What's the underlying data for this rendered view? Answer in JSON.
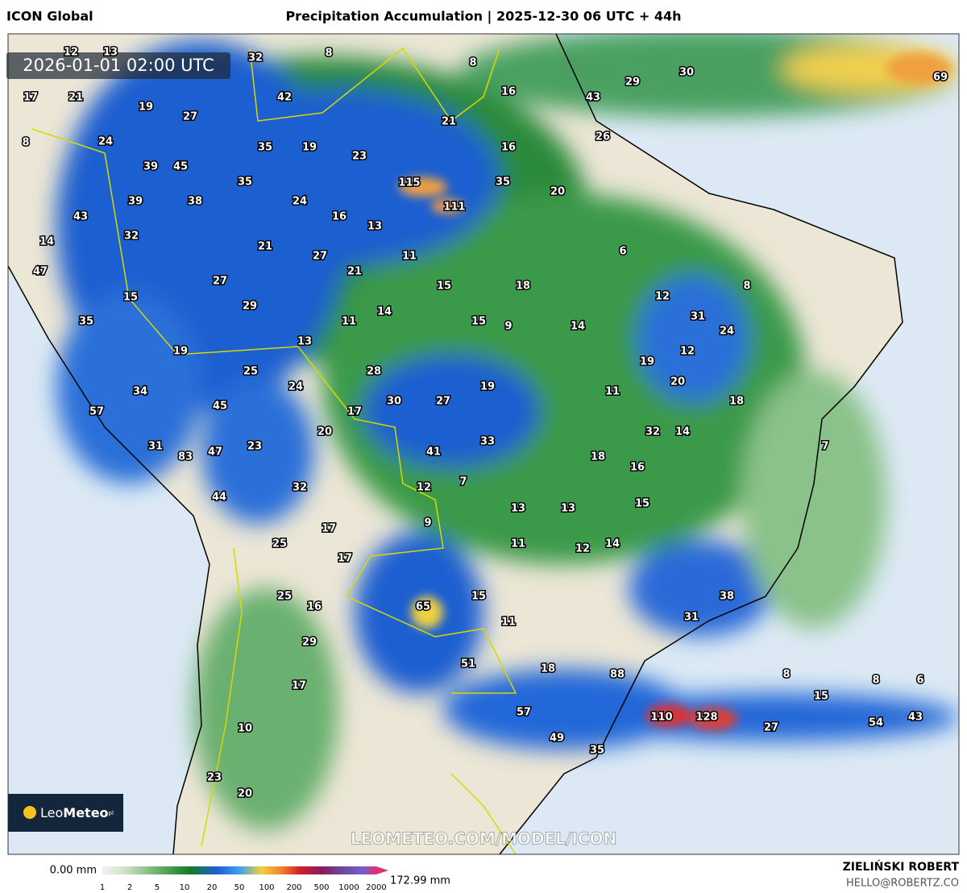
{
  "header": {
    "model": "ICON Global",
    "title": "Precipitation Accumulation | 2025-12-30 06 UTC + 44h"
  },
  "timestamp": "2026-01-01 02:00 UTC",
  "watermark": "LEOMETEO.COM/MODEL/ICON",
  "logo": {
    "brand_light": "Leo",
    "brand_bold": "Meteo",
    "suffix": "pl"
  },
  "map_labels": [
    12,
    13,
    32,
    8,
    8,
    29,
    30,
    69,
    17,
    21,
    42,
    16,
    43,
    19,
    27,
    21,
    8,
    24,
    35,
    19,
    23,
    16,
    26,
    39,
    45,
    115,
    35,
    20,
    35,
    39,
    38,
    24,
    111,
    43,
    16,
    13,
    32,
    14,
    21,
    27,
    11,
    6,
    47,
    21,
    27,
    15,
    18,
    8,
    15,
    12,
    29,
    14,
    31,
    35,
    11,
    15,
    9,
    14,
    24,
    13,
    19,
    12,
    19,
    25,
    28,
    20,
    24,
    19,
    11,
    34,
    30,
    27,
    18,
    45,
    57,
    17,
    20,
    32,
    14,
    33,
    7,
    31,
    23,
    41,
    83,
    47,
    18,
    16,
    7,
    12,
    32,
    44,
    13,
    13,
    15,
    9,
    17,
    25,
    11,
    14,
    12,
    17,
    15,
    25,
    16,
    38,
    65,
    11,
    31,
    29,
    51,
    18,
    88,
    8,
    8,
    6,
    17,
    15,
    57,
    110,
    128,
    43,
    54,
    27,
    10,
    49,
    35,
    23,
    20
  ],
  "legend": {
    "min_label": "0.00 mm",
    "max_label": "172.99 mm",
    "ticks": [
      1,
      2,
      5,
      10,
      20,
      50,
      100,
      200,
      500,
      1000,
      2000
    ]
  },
  "credits": {
    "author": "ZIELIŃSKI ROBERT",
    "email": "HELLO@ROBERTZ.CO"
  }
}
